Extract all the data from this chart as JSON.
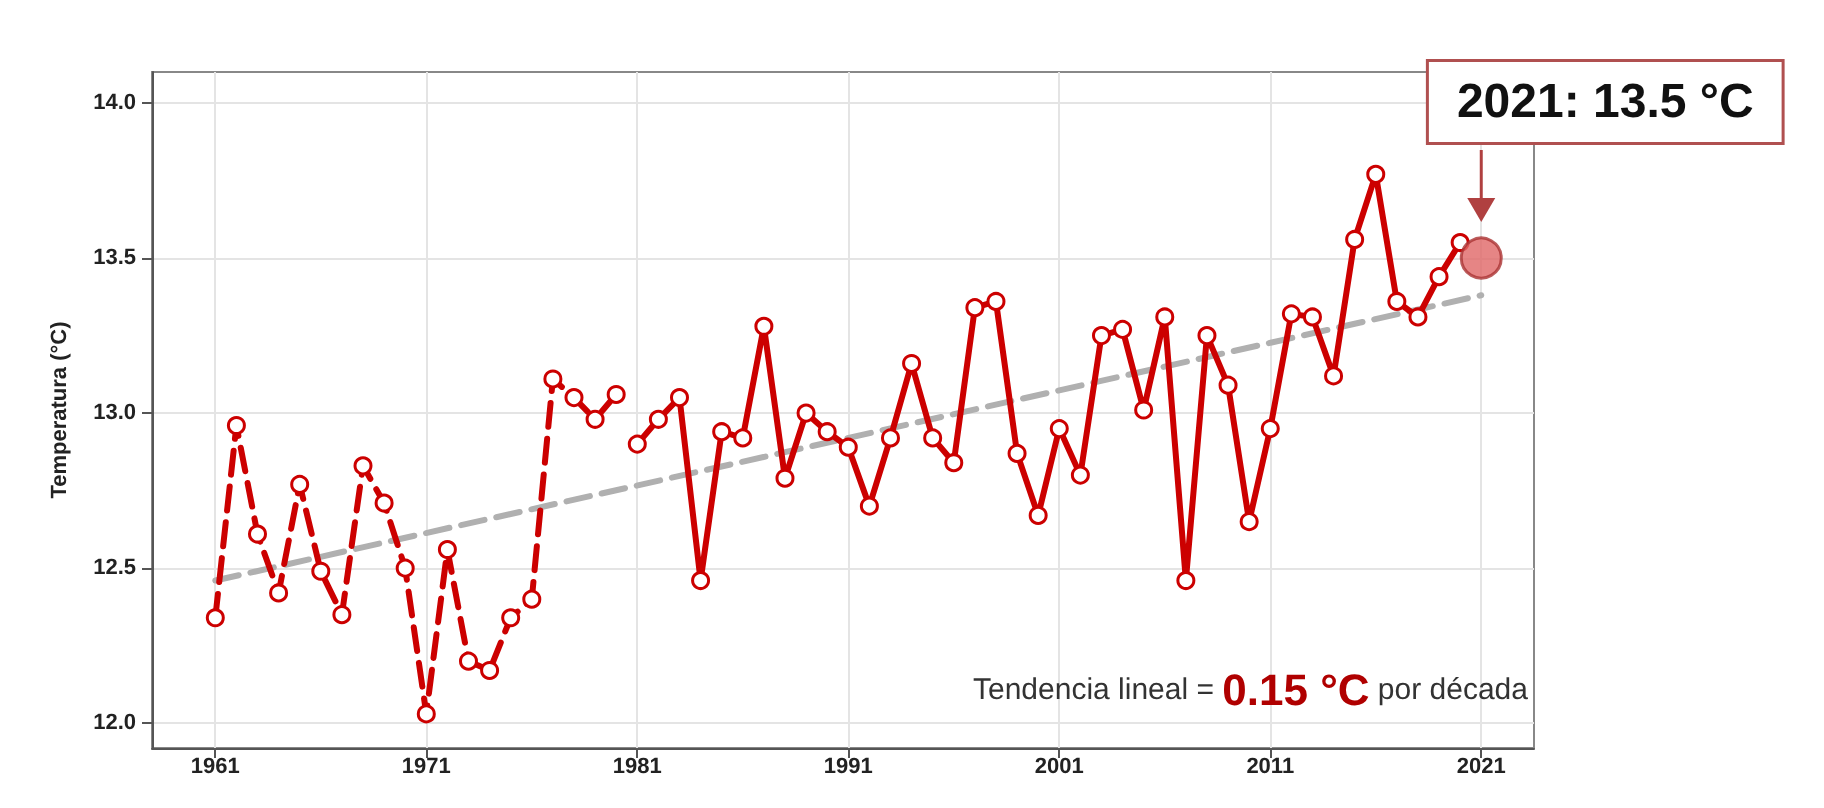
{
  "chart_data": {
    "type": "line",
    "ylabel": "Temperatura (°C)",
    "xlim": [
      1958,
      2023.5
    ],
    "xticks": [
      1961,
      1971,
      1981,
      1991,
      2001,
      2011,
      2021
    ],
    "ylim": [
      11.92,
      14.1
    ],
    "yticks": [
      {
        "value": 12,
        "label": "12.0"
      },
      {
        "value": 12.5,
        "label": "12.5"
      },
      {
        "value": 13,
        "label": "13.0"
      },
      {
        "value": 13.5,
        "label": "13.5"
      },
      {
        "value": 14,
        "label": "14.0"
      }
    ],
    "grid": true,
    "marker": "circle",
    "series": [
      {
        "color": "#b0b0b0",
        "line_style": "dashed",
        "marker": "none",
        "x": [
          1961,
          2021
        ],
        "values": [
          12.46,
          13.38
        ]
      },
      {
        "color": "#cc0000",
        "line_style": "dashed",
        "x": [
          1961,
          1962,
          1963,
          1964,
          1965,
          1966,
          1967,
          1968,
          1969,
          1970,
          1971,
          1972,
          1973,
          1974,
          1975,
          1976,
          1977,
          1978,
          1979,
          1980
        ],
        "values": [
          12.34,
          12.96,
          12.61,
          12.42,
          12.77,
          12.49,
          12.35,
          12.83,
          12.71,
          12.5,
          12.03,
          12.56,
          12.2,
          12.17,
          12.34,
          12.4,
          13.11,
          13.05,
          12.98,
          13.06
        ]
      },
      {
        "color": "#cc0000",
        "line_style": "solid",
        "x": [
          1981,
          1982,
          1983,
          1984,
          1985,
          1986,
          1987,
          1988,
          1989,
          1990,
          1991,
          1992,
          1993,
          1994,
          1995,
          1996,
          1997,
          1998,
          1999,
          2000,
          2001,
          2002,
          2003,
          2004,
          2005,
          2006,
          2007,
          2008,
          2009,
          2010,
          2011,
          2012,
          2013,
          2014,
          2015,
          2016,
          2017,
          2018,
          2019,
          2020
        ],
        "values": [
          12.9,
          12.98,
          13.05,
          12.46,
          12.94,
          12.92,
          13.28,
          12.79,
          13.0,
          12.94,
          12.89,
          12.7,
          12.92,
          13.16,
          12.92,
          12.84,
          13.34,
          13.36,
          12.87,
          12.67,
          12.95,
          12.8,
          13.25,
          13.27,
          13.01,
          13.31,
          12.46,
          13.25,
          13.09,
          12.65,
          12.95,
          13.32,
          13.31,
          13.12,
          13.56,
          13.77,
          13.36,
          13.31,
          13.44,
          13.55
        ]
      },
      {
        "type": "scatter",
        "color": "#e06666",
        "marker": "circle",
        "x": [
          2021
        ],
        "values": [
          13.5
        ]
      }
    ],
    "annotations": [
      {
        "text": "2021: 13.5 °C",
        "x": 2021,
        "y": 13.5
      },
      "Tendencia lineal = 0.15 °C por década"
    ]
  }
}
